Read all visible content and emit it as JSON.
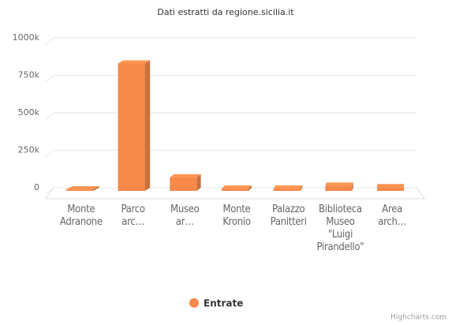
{
  "chart_data": {
    "type": "bar3d",
    "title": "Dati estratti da regione.sicilia.it",
    "categories": [
      "Monte Adranone",
      "Parco arc…",
      "Museo ar…",
      "Monte Kronio",
      "Palazzo Panitteri",
      "Biblioteca Museo \"Luigi Pirandello\"",
      "Area arch…"
    ],
    "series": [
      {
        "name": "Entrate",
        "color": "#f7894a",
        "values": [
          10000,
          850000,
          90000,
          15000,
          15000,
          35000,
          25000
        ]
      }
    ],
    "ylim": [
      0,
      1000000
    ],
    "yticks": [
      0,
      {
        "value": 250000,
        "label": "250k"
      },
      {
        "value": 500000,
        "label": "500k"
      },
      {
        "value": 750000,
        "label": "750k"
      },
      {
        "value": 1000000,
        "label": "1000k"
      }
    ],
    "grid": true,
    "legend": "bottom",
    "credits": "Highcharts.com"
  }
}
